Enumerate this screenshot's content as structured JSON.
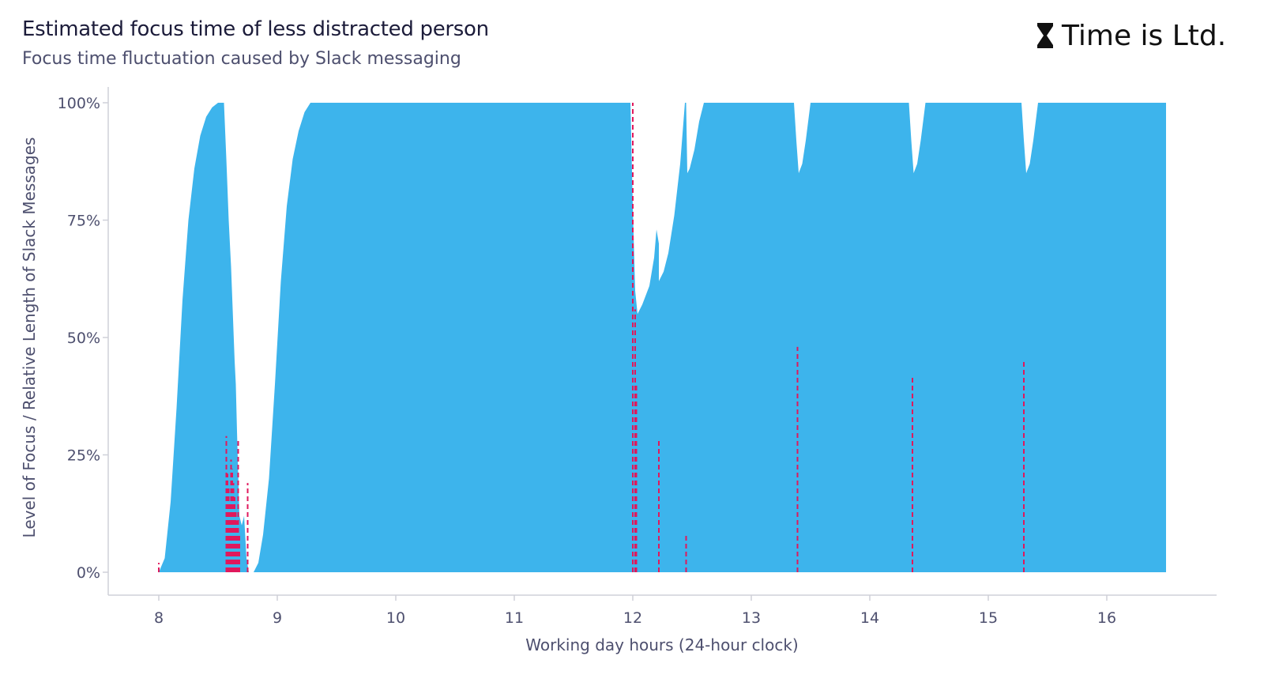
{
  "header": {
    "title": "Estimated focus time of less distracted person",
    "subtitle": "Focus time fluctuation caused by Slack messaging",
    "brand": "Time is Ltd.",
    "brand_icon": "hourglass-icon"
  },
  "colors": {
    "area": "#3db4ec",
    "messages": "#e0185c",
    "axis": "#cfd0d8",
    "text": "#4d4f6e"
  },
  "chart_data": {
    "type": "area",
    "title": "Estimated focus time of less distracted person",
    "subtitle": "Focus time fluctuation caused by Slack messaging",
    "xlabel": "Working day hours (24-hour clock)",
    "ylabel": "Level of Focus / Relative Length of Slack Messages",
    "xlim": [
      8,
      16.5
    ],
    "ylim": [
      0,
      100
    ],
    "x_ticks": [
      8,
      9,
      10,
      11,
      12,
      13,
      14,
      15,
      16
    ],
    "y_ticks": [
      0,
      25,
      50,
      75,
      100
    ],
    "y_tick_labels": [
      "0%",
      "25%",
      "50%",
      "75%",
      "100%"
    ],
    "grid": false,
    "series": [
      {
        "values_unit": "percent",
        "points": [
          [
            8.0,
            0
          ],
          [
            8.05,
            3
          ],
          [
            8.1,
            15
          ],
          [
            8.15,
            35
          ],
          [
            8.2,
            58
          ],
          [
            8.25,
            75
          ],
          [
            8.3,
            86
          ],
          [
            8.35,
            93
          ],
          [
            8.4,
            97
          ],
          [
            8.45,
            99
          ],
          [
            8.5,
            100
          ],
          [
            8.55,
            100
          ],
          [
            8.57,
            88
          ],
          [
            8.59,
            75
          ],
          [
            8.6,
            70
          ],
          [
            8.61,
            65
          ],
          [
            8.64,
            45
          ],
          [
            8.65,
            40
          ],
          [
            8.66,
            30
          ],
          [
            8.68,
            12
          ],
          [
            8.7,
            10
          ],
          [
            8.72,
            12
          ],
          [
            8.74,
            3
          ],
          [
            8.76,
            0
          ],
          [
            8.8,
            0
          ],
          [
            8.84,
            2
          ],
          [
            8.88,
            8
          ],
          [
            8.93,
            20
          ],
          [
            8.98,
            40
          ],
          [
            9.03,
            62
          ],
          [
            9.08,
            78
          ],
          [
            9.13,
            88
          ],
          [
            9.18,
            94
          ],
          [
            9.23,
            98
          ],
          [
            9.28,
            100
          ],
          [
            11.98,
            100
          ],
          [
            12.0,
            78
          ],
          [
            12.02,
            60
          ],
          [
            12.04,
            55
          ],
          [
            12.08,
            57
          ],
          [
            12.14,
            61
          ],
          [
            12.18,
            67
          ],
          [
            12.2,
            73
          ],
          [
            12.22,
            70
          ],
          [
            12.22,
            62
          ],
          [
            12.26,
            64
          ],
          [
            12.3,
            68
          ],
          [
            12.35,
            76
          ],
          [
            12.4,
            87
          ],
          [
            12.44,
            100
          ],
          [
            12.45,
            100
          ],
          [
            12.46,
            85
          ],
          [
            12.48,
            86
          ],
          [
            12.52,
            90
          ],
          [
            12.56,
            96
          ],
          [
            12.6,
            100
          ],
          [
            13.36,
            100
          ],
          [
            13.38,
            92
          ],
          [
            13.4,
            85
          ],
          [
            13.43,
            87
          ],
          [
            13.46,
            92
          ],
          [
            13.5,
            100
          ],
          [
            14.33,
            100
          ],
          [
            14.35,
            92
          ],
          [
            14.37,
            85
          ],
          [
            14.4,
            87
          ],
          [
            14.43,
            92
          ],
          [
            14.47,
            100
          ],
          [
            15.28,
            100
          ],
          [
            15.3,
            92
          ],
          [
            15.32,
            85
          ],
          [
            15.35,
            87
          ],
          [
            15.38,
            92
          ],
          [
            15.42,
            100
          ],
          [
            16.5,
            100
          ],
          [
            16.5,
            0
          ]
        ]
      }
    ],
    "messages": [
      {
        "x": 8.0,
        "y": 2
      },
      {
        "x": 8.57,
        "y": 29
      },
      {
        "x": 8.58,
        "y": 21
      },
      {
        "x": 8.59,
        "y": 18
      },
      {
        "x": 8.6,
        "y": 15
      },
      {
        "x": 8.61,
        "y": 24
      },
      {
        "x": 8.62,
        "y": 22
      },
      {
        "x": 8.63,
        "y": 19
      },
      {
        "x": 8.64,
        "y": 16
      },
      {
        "x": 8.65,
        "y": 13
      },
      {
        "x": 8.66,
        "y": 11
      },
      {
        "x": 8.67,
        "y": 28
      },
      {
        "x": 8.68,
        "y": 8
      },
      {
        "x": 8.75,
        "y": 19
      },
      {
        "x": 12.0,
        "y": 100
      },
      {
        "x": 12.02,
        "y": 56
      },
      {
        "x": 12.03,
        "y": 40
      },
      {
        "x": 12.22,
        "y": 28
      },
      {
        "x": 12.45,
        "y": 8
      },
      {
        "x": 13.39,
        "y": 48
      },
      {
        "x": 14.36,
        "y": 42
      },
      {
        "x": 15.3,
        "y": 45
      }
    ]
  }
}
